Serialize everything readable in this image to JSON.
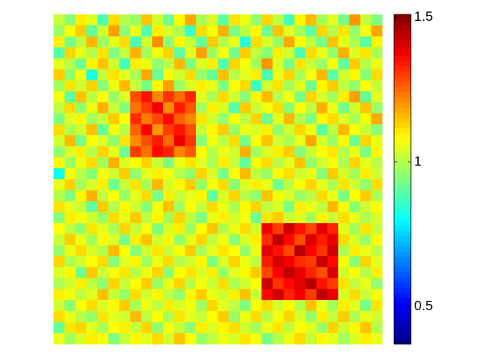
{
  "chart_data": {
    "type": "heatmap",
    "colormap": "jet",
    "colorbar": {
      "lim": [
        0.37,
        1.51
      ],
      "ticks": [
        0.5,
        1,
        1.5
      ]
    },
    "z": [
      [
        1.02,
        0.95,
        1.1,
        1.05,
        0.88,
        1.12,
        1.0,
        0.97,
        1.15,
        1.03,
        0.92,
        1.08,
        1.18,
        0.99,
        1.04,
        0.9,
        1.11,
        1.06,
        0.96,
        1.13,
        1.01,
        0.87,
        1.09,
        1.16,
        0.98,
        1.05,
        0.93,
        1.2,
        1.02,
        0.94
      ],
      [
        0.97,
        1.08,
        1.14,
        0.91,
        1.03,
        1.19,
        0.95,
        1.06,
        0.89,
        1.1,
        1.04,
        0.99,
        0.86,
        1.12,
        1.07,
        1.17,
        0.94,
        1.01,
        1.09,
        0.92,
        1.15,
        1.05,
        0.98,
        0.9,
        1.13,
        1.0,
        1.11,
        0.96,
        1.07,
        1.18
      ],
      [
        1.1,
        0.93,
        1.01,
        1.16,
        0.97,
        1.05,
        1.12,
        0.88,
        1.03,
        1.21,
        0.95,
        1.09,
        1.02,
        0.91,
        1.14,
        1.0,
        1.06,
        0.84,
        1.12,
        1.04,
        0.97,
        1.18,
        1.08,
        1.01,
        0.93,
        1.15,
        1.05,
        0.99,
        0.9,
        1.09
      ],
      [
        0.89,
        1.13,
        1.06,
        1.0,
        1.11,
        0.94,
        1.02,
        1.17,
        0.98,
        1.07,
        1.13,
        0.9,
        1.05,
        1.19,
        0.97,
        1.08,
        0.92,
        1.14,
        1.01,
        0.95,
        1.1,
        1.03,
        0.88,
        1.12,
        1.06,
        0.96,
        1.17,
        1.04,
        1.11,
        0.99
      ],
      [
        1.05,
        1.0,
        0.92,
        1.09,
        1.15,
        1.03,
        0.87,
        1.1,
        1.06,
        0.96,
        1.01,
        1.16,
        0.94,
        1.04,
        1.1,
        0.89,
        1.13,
        1.07,
        0.98,
        1.2,
        1.04,
        0.93,
        1.11,
        1.02,
        0.97,
        1.08,
        0.91,
        1.14,
        1.0,
        1.06
      ],
      [
        1.14,
        0.96,
        1.07,
        0.83,
        1.02,
        1.11,
        1.05,
        0.99,
        1.18,
        0.92,
        1.08,
        1.03,
        1.12,
        0.97,
        0.91,
        1.15,
        1.0,
        1.05,
        1.1,
        0.88,
        1.06,
        1.13,
        0.99,
        1.07,
        1.16,
        0.9,
        1.03,
        1.09,
        0.95,
        1.12
      ],
      [
        0.98,
        1.11,
        1.03,
        1.13,
        0.95,
        1.06,
        1.16,
        1.02,
        0.93,
        1.09,
        1.19,
        0.97,
        1.04,
        1.1,
        1.06,
        0.94,
        1.08,
        1.12,
        0.86,
        1.03,
        1.11,
        0.98,
        1.05,
        0.92,
        1.09,
        1.14,
        1.01,
        0.96,
        1.08,
        1.02
      ],
      [
        1.07,
        0.9,
        1.15,
        1.01,
        1.08,
        0.97,
        1.04,
        1.28,
        1.35,
        1.22,
        1.31,
        1.25,
        1.33,
        1.05,
        0.99,
        1.12,
        1.03,
        0.95,
        1.09,
        1.16,
        1.0,
        1.07,
        0.93,
        1.13,
        1.04,
        0.98,
        1.1,
        1.19,
        0.91,
        1.05
      ],
      [
        1.01,
        1.12,
        0.96,
        1.06,
        1.17,
        1.02,
        0.94,
        1.24,
        1.3,
        1.38,
        1.21,
        1.34,
        1.27,
        0.98,
        1.1,
        1.04,
        0.89,
        1.14,
        1.02,
        1.07,
        1.12,
        0.95,
        1.08,
        1.01,
        1.17,
        1.06,
        0.93,
        1.03,
        1.15,
        0.97
      ],
      [
        0.94,
        1.05,
        1.09,
        0.98,
        1.02,
        1.14,
        1.08,
        1.32,
        1.23,
        1.29,
        1.36,
        1.26,
        1.22,
        1.11,
        1.03,
        0.96,
        1.08,
        1.01,
        1.13,
        0.92,
        1.05,
        1.16,
        1.0,
        0.94,
        1.09,
        1.12,
        1.04,
        0.99,
        1.07,
        1.18
      ],
      [
        1.12,
        0.99,
        1.03,
        1.15,
        0.91,
        1.07,
        1.0,
        1.26,
        1.37,
        1.2,
        1.3,
        1.35,
        1.28,
        1.02,
        1.09,
        1.14,
        0.97,
        1.06,
        1.04,
        1.1,
        0.96,
        1.03,
        1.13,
        1.07,
        0.9,
        1.01,
        1.16,
        1.08,
        1.02,
        0.95
      ],
      [
        1.03,
        1.16,
        0.93,
        1.08,
        1.04,
        0.96,
        1.11,
        1.21,
        1.28,
        1.34,
        1.25,
        1.39,
        1.31,
        0.95,
        1.07,
        1.01,
        1.12,
        0.93,
        1.08,
        1.15,
        1.03,
        0.99,
        1.06,
        1.18,
        1.04,
        0.97,
        1.09,
        0.92,
        1.13,
        1.06
      ],
      [
        0.96,
        1.04,
        1.1,
        1.0,
        1.13,
        1.05,
        0.92,
        1.3,
        1.24,
        1.36,
        1.33,
        1.22,
        1.27,
        1.08,
        1.0,
        1.06,
        1.03,
        1.17,
        0.98,
        1.04,
        1.1,
        1.14,
        0.95,
        1.02,
        1.08,
        1.11,
        1.0,
        1.06,
        0.94,
        1.09
      ],
      [
        1.09,
        0.97,
        1.06,
        1.12,
        0.98,
        1.17,
        1.04,
        1.08,
        1.13,
        1.02,
        0.94,
        1.06,
        1.11,
        1.05,
        0.99,
        1.1,
        1.02,
        0.91,
        1.07,
        1.12,
        1.0,
        1.05,
        1.15,
        0.96,
        1.03,
        1.07,
        0.99,
        1.13,
        1.05,
        1.01
      ],
      [
        0.81,
        1.08,
        1.01,
        0.95,
        1.07,
        1.03,
        1.14,
        0.96,
        1.05,
        1.1,
        1.07,
        1.0,
        0.96,
        1.13,
        1.04,
        0.93,
        1.08,
        1.16,
        1.01,
        0.97,
        1.09,
        1.12,
        1.02,
        1.06,
        0.95,
        1.14,
        1.04,
        0.98,
        1.1,
        1.03
      ],
      [
        1.06,
        1.13,
        0.98,
        1.04,
        1.1,
        0.92,
        1.02,
        1.11,
        0.99,
        1.16,
        1.03,
        1.09,
        1.14,
        0.97,
        1.07,
        1.12,
        0.95,
        1.04,
        1.1,
        1.06,
        0.92,
        1.01,
        1.08,
        1.13,
        1.05,
        0.99,
        1.11,
        1.03,
        0.96,
        1.12
      ],
      [
        1.0,
        0.94,
        1.09,
        1.17,
        1.01,
        1.08,
        0.97,
        1.05,
        1.12,
        0.93,
        1.1,
        1.02,
        1.05,
        1.09,
        0.9,
        1.04,
        1.13,
        1.0,
        0.96,
        1.15,
        1.07,
        1.04,
        0.97,
        1.0,
        1.12,
        1.06,
        0.93,
        1.08,
        1.14,
        0.99
      ],
      [
        1.11,
        1.05,
        1.02,
        0.91,
        1.14,
        1.0,
        1.09,
        1.03,
        0.95,
        1.07,
        1.15,
        0.98,
        1.08,
        1.02,
        1.12,
        1.06,
        0.99,
        1.09,
        1.13,
        1.01,
        1.04,
        0.94,
        1.1,
        1.06,
        1.01,
        1.16,
        1.07,
        0.95,
        1.03,
        1.08
      ],
      [
        0.95,
        1.1,
        1.07,
        1.03,
        0.97,
        1.12,
        1.05,
        1.14,
        1.01,
        1.09,
        0.98,
        1.13,
        1.01,
        0.94,
        1.06,
        1.1,
        1.03,
        1.07,
        0.92,
        1.11,
        1.14,
        1.03,
        1.05,
        0.98,
        1.09,
        1.02,
        1.12,
        1.06,
        0.99,
        1.04
      ],
      [
        1.08,
        1.01,
        0.96,
        1.11,
        1.05,
        0.99,
        1.13,
        1.02,
        1.07,
        0.94,
        1.04,
        1.1,
        0.97,
        1.08,
        1.15,
        1.0,
        1.06,
        1.12,
        1.03,
        1.38,
        1.3,
        1.42,
        1.35,
        1.29,
        1.4,
        1.33,
        1.05,
        0.98,
        1.11,
        1.02
      ],
      [
        1.02,
        1.14,
        1.06,
        0.98,
        1.09,
        1.04,
        0.93,
        1.1,
        1.15,
        1.03,
        1.09,
        0.96,
        1.05,
        1.13,
        1.01,
        1.07,
        0.95,
        1.04,
        1.1,
        1.32,
        1.44,
        1.36,
        1.28,
        1.41,
        1.34,
        1.39,
        1.12,
        1.04,
        0.97,
        1.08
      ],
      [
        0.97,
        1.06,
        1.12,
        1.04,
        1.0,
        1.16,
        1.08,
        0.95,
        1.03,
        1.11,
        1.02,
        1.07,
        1.14,
        0.99,
        1.05,
        1.11,
        1.08,
        0.97,
        1.06,
        1.4,
        1.35,
        1.29,
        1.45,
        1.37,
        1.31,
        1.42,
        0.99,
        1.1,
        1.06,
        1.01
      ],
      [
        1.13,
        0.99,
        1.03,
        1.08,
        1.12,
        0.95,
        1.05,
        1.09,
        0.98,
        1.06,
        1.12,
        1.0,
        1.03,
        1.09,
        0.94,
        1.04,
        1.13,
        1.06,
        1.01,
        1.34,
        1.41,
        1.38,
        1.32,
        1.3,
        1.43,
        1.36,
        1.07,
        0.95,
        1.13,
        1.05
      ],
      [
        1.04,
        1.09,
        0.92,
        1.14,
        1.02,
        1.07,
        1.11,
        1.0,
        1.06,
        1.13,
        0.95,
        1.08,
        1.11,
        1.04,
        1.1,
        0.97,
        1.05,
        1.09,
        1.14,
        1.29,
        1.37,
        1.44,
        1.39,
        1.33,
        1.28,
        1.41,
        1.03,
        1.08,
        1.0,
        1.1
      ],
      [
        0.99,
        1.03,
        1.1,
        1.01,
        0.96,
        1.13,
        1.02,
        1.08,
        1.14,
        0.97,
        1.06,
        1.13,
        1.0,
        1.07,
        1.02,
        1.12,
        0.99,
        1.03,
        1.08,
        1.43,
        1.31,
        1.36,
        1.4,
        1.45,
        1.35,
        1.3,
        1.11,
        1.01,
        1.06,
        0.96
      ],
      [
        1.1,
        1.07,
        1.01,
        1.05,
        1.15,
        1.02,
        0.97,
        1.12,
        1.03,
        1.09,
        1.01,
        0.96,
        1.09,
        1.14,
        1.06,
        1.03,
        1.1,
        1.15,
        1.02,
        1.36,
        1.42,
        1.33,
        1.38,
        1.3,
        1.44,
        1.39,
        1.04,
        1.12,
        1.02,
        1.07
      ],
      [
        1.03,
        0.95,
        1.08,
        1.12,
        1.04,
        1.09,
        1.14,
        0.99,
        1.06,
        1.01,
        1.1,
        1.04,
        1.07,
        0.98,
        1.13,
        1.05,
        1.01,
        0.94,
        1.08,
        1.12,
        1.03,
        1.09,
        1.0,
        1.15,
        1.06,
        0.98,
        1.1,
        1.05,
        0.93,
        1.11
      ],
      [
        1.12,
        1.06,
        1.0,
        0.97,
        1.11,
        1.05,
        1.03,
        1.16,
        1.01,
        1.08,
        0.99,
        1.11,
        1.05,
        1.02,
        1.08,
        1.14,
        0.97,
        1.06,
        1.12,
        1.0,
        1.07,
        1.13,
        1.04,
        0.96,
        1.1,
        1.02,
        1.14,
        0.99,
        1.06,
        1.03
      ],
      [
        0.91,
        1.11,
        1.13,
        1.05,
        0.99,
        1.08,
        1.1,
        1.02,
        1.13,
        0.96,
        1.07,
        1.02,
        0.95,
        1.1,
        1.04,
        1.09,
        1.12,
        1.03,
        0.98,
        1.06,
        1.11,
        1.01,
        1.08,
        1.05,
        0.97,
        1.13,
        1.03,
        1.09,
        1.15,
        1.0
      ],
      [
        1.06,
        0.98,
        1.04,
        1.1,
        1.07,
        0.94,
        1.02,
        1.09,
        1.05,
        1.12,
        1.03,
        1.15,
        1.08,
        0.97,
        1.01,
        1.06,
        1.04,
        1.11,
        1.07,
        0.93,
        1.0,
        1.06,
        1.12,
        1.02,
        1.09,
        1.05,
        0.98,
        1.04,
        1.1,
        1.06
      ]
    ]
  }
}
